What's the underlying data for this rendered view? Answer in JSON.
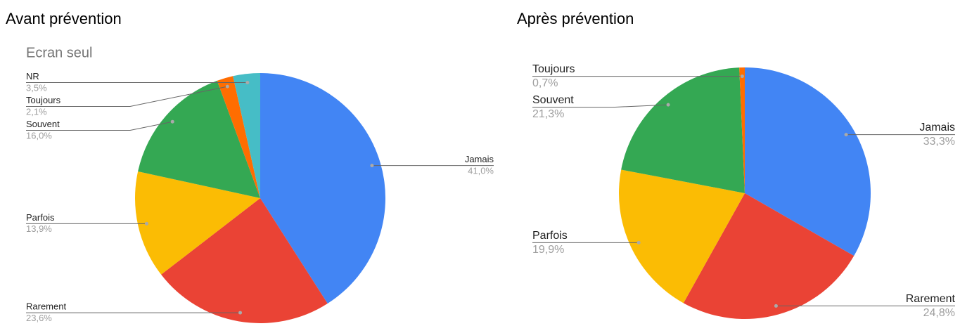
{
  "chart_data": [
    {
      "type": "pie",
      "title": "Avant prévention",
      "subtitle": "Ecran seul",
      "categories": [
        "Jamais",
        "Rarement",
        "Parfois",
        "Souvent",
        "Toujours",
        "NR"
      ],
      "values": [
        41.0,
        23.6,
        13.9,
        16.0,
        2.1,
        3.5
      ],
      "value_labels": [
        "41,0%",
        "23,6%",
        "13,9%",
        "16,0%",
        "2,1%",
        "3,5%"
      ],
      "colors": [
        "#4285f4",
        "#ea4335",
        "#fbbc04",
        "#34a853",
        "#ff6d01",
        "#46bdc6"
      ]
    },
    {
      "type": "pie",
      "title": "Après prévention",
      "categories": [
        "Jamais",
        "Rarement",
        "Parfois",
        "Souvent",
        "Toujours"
      ],
      "values": [
        33.3,
        24.8,
        19.9,
        21.3,
        0.7
      ],
      "value_labels": [
        "33,3%",
        "24,8%",
        "19,9%",
        "21,3%",
        "0,7%"
      ],
      "colors": [
        "#4285f4",
        "#ea4335",
        "#fbbc04",
        "#34a853",
        "#ff6d01"
      ]
    }
  ]
}
